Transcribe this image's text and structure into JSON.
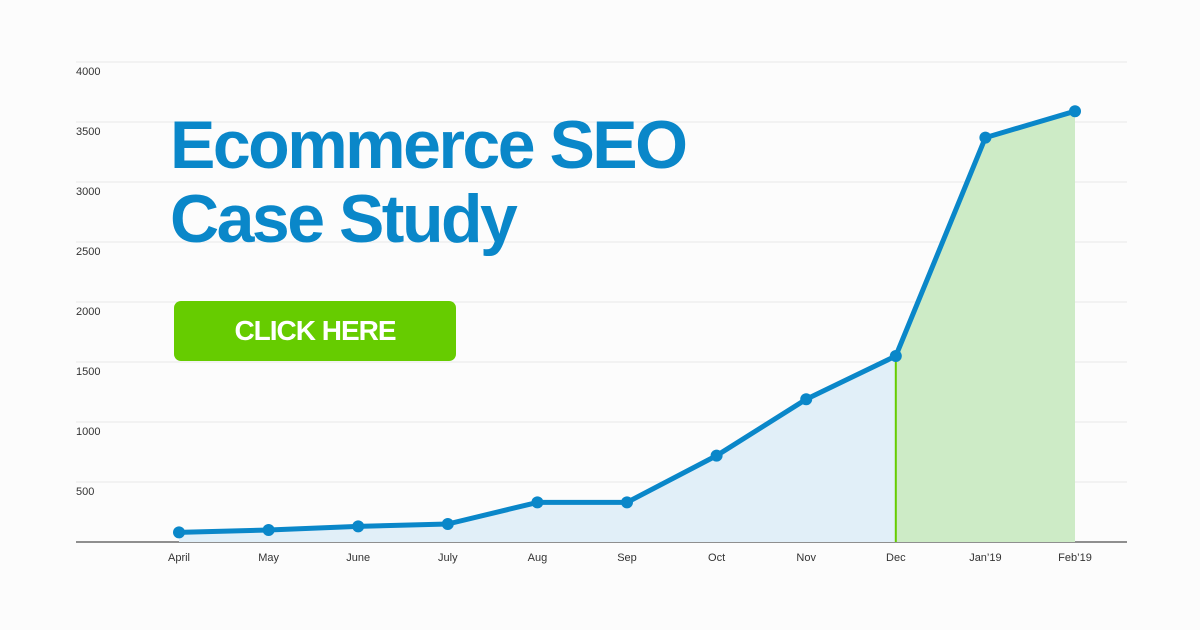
{
  "chart_data": {
    "type": "area-line",
    "title": "Ecommerce SEO Case Study",
    "button": "CLICK HERE",
    "categories": [
      "April",
      "May",
      "June",
      "July",
      "Aug",
      "Sep",
      "Oct",
      "Nov",
      "Dec",
      "Jan’19",
      "Feb’19"
    ],
    "values": [
      80,
      100,
      130,
      150,
      330,
      330,
      720,
      1190,
      1550,
      3370,
      3590
    ],
    "color": "#0a87c9",
    "area_color": "#e1eff8",
    "highlight_start": "Dec",
    "highlight_color": "#cdebc6",
    "highlight_line_color": "#66cc00",
    "ylim": [
      0,
      4000
    ],
    "yticks": [
      500,
      1000,
      1500,
      2000,
      2500,
      3000,
      3500,
      4000
    ],
    "grid": true
  }
}
